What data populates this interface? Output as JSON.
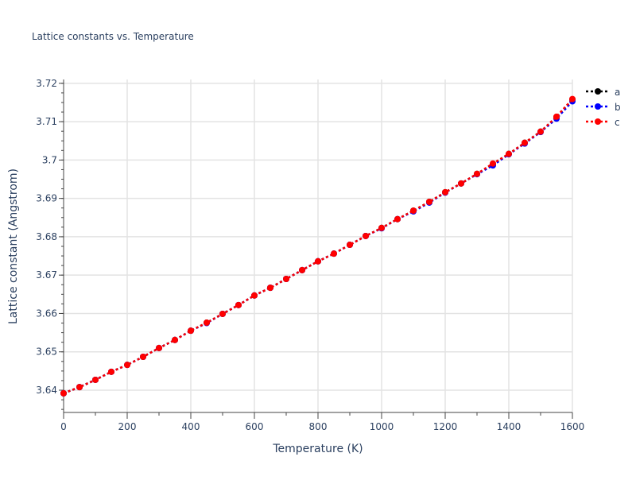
{
  "chart_data": {
    "type": "line",
    "title": "Lattice constants vs. Temperature",
    "xlabel": "Temperature (K)",
    "ylabel": "Lattice constant (Angstrom)",
    "xlim": [
      0,
      1600
    ],
    "ylim": [
      3.6342,
      3.721
    ],
    "xticks": [
      0,
      200,
      400,
      600,
      800,
      1000,
      1200,
      1400,
      1600
    ],
    "xtick_labels": [
      "0",
      "200",
      "400",
      "600",
      "800",
      "1000",
      "1200",
      "1400",
      "1600"
    ],
    "yticks": [
      3.64,
      3.65,
      3.66,
      3.67,
      3.68,
      3.69,
      3.7,
      3.71,
      3.72
    ],
    "ytick_labels": [
      "3.64",
      "3.65",
      "3.66",
      "3.67",
      "3.68",
      "3.69",
      "3.7",
      "3.71",
      "3.72"
    ],
    "grid": true,
    "legend": "right",
    "x": [
      0,
      50,
      100,
      150,
      200,
      250,
      300,
      350,
      400,
      450,
      500,
      550,
      600,
      650,
      700,
      750,
      800,
      850,
      900,
      950,
      1000,
      1050,
      1100,
      1150,
      1200,
      1250,
      1300,
      1350,
      1400,
      1450,
      1500,
      1550,
      1600
    ],
    "series": [
      {
        "name": "a",
        "color": "#000000",
        "values": [
          3.6392,
          3.6408,
          3.6427,
          3.6448,
          3.6466,
          3.6487,
          3.651,
          3.6531,
          3.6555,
          3.6576,
          3.6599,
          3.6622,
          3.6647,
          3.6667,
          3.669,
          3.6713,
          3.6736,
          3.6756,
          3.6779,
          3.6802,
          3.6823,
          3.6846,
          3.6868,
          3.6891,
          3.6916,
          3.6939,
          3.6964,
          3.699,
          3.7016,
          3.7045,
          3.7074,
          3.7112,
          3.7158
        ]
      },
      {
        "name": "b",
        "color": "#0000ff",
        "values": [
          3.6392,
          3.6408,
          3.6427,
          3.6448,
          3.6466,
          3.6487,
          3.651,
          3.6531,
          3.6555,
          3.6575,
          3.6599,
          3.6622,
          3.6647,
          3.6667,
          3.669,
          3.6713,
          3.6736,
          3.6756,
          3.6779,
          3.6802,
          3.6822,
          3.6846,
          3.6866,
          3.6889,
          3.6915,
          3.6939,
          3.6963,
          3.6986,
          3.7015,
          3.7043,
          3.7073,
          3.7108,
          3.7153
        ]
      },
      {
        "name": "c",
        "color": "#ff0000",
        "values": [
          3.6392,
          3.6408,
          3.6427,
          3.6448,
          3.6466,
          3.6487,
          3.651,
          3.6531,
          3.6555,
          3.6576,
          3.6599,
          3.6622,
          3.6647,
          3.6667,
          3.669,
          3.6713,
          3.6736,
          3.6756,
          3.6779,
          3.6802,
          3.6823,
          3.6846,
          3.6868,
          3.6891,
          3.6916,
          3.6939,
          3.6964,
          3.6991,
          3.7016,
          3.7045,
          3.7074,
          3.7113,
          3.7159
        ]
      }
    ]
  }
}
